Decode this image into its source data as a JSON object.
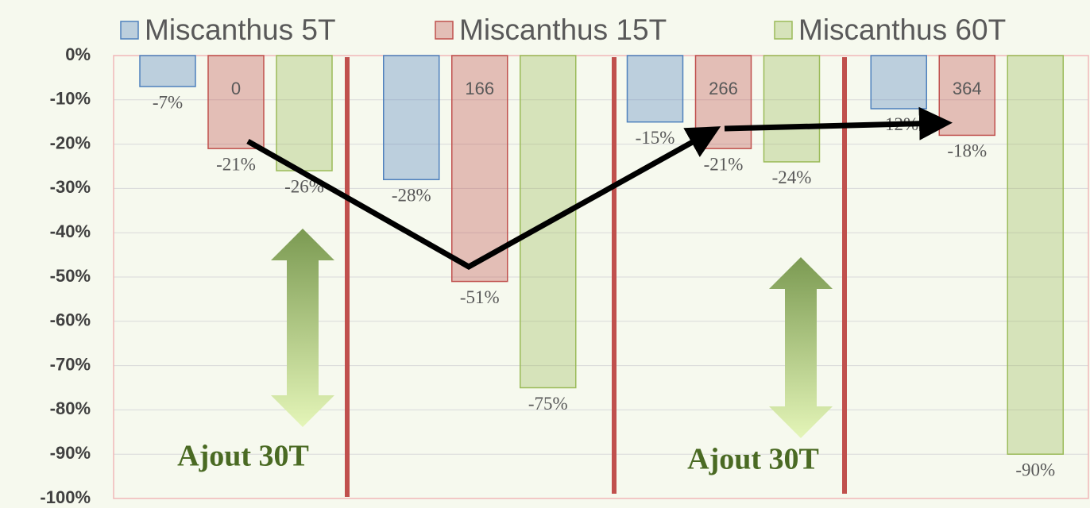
{
  "chart_data": {
    "type": "bar",
    "categories": [
      null,
      null,
      null,
      null
    ],
    "series": [
      {
        "name": "Miscanthus 5T",
        "color": "#4f81bd",
        "values": [
          -7,
          -28,
          -15,
          -12
        ],
        "value_labels": [
          "-7%",
          "-28%",
          "-15%",
          "-12%"
        ]
      },
      {
        "name": "Miscanthus 15T",
        "color": "#c0504d",
        "values": [
          -21,
          -51,
          -21,
          -18
        ],
        "value_labels": [
          "-21%",
          "-51%",
          "-21%",
          "-18%"
        ]
      },
      {
        "name": "Miscanthus 60T",
        "color": "#9bbb59",
        "values": [
          -26,
          -75,
          -24,
          -90
        ],
        "value_labels": [
          "-26%",
          "-75%",
          "-24%",
          "-90%"
        ]
      }
    ],
    "bar_notes": [
      0,
      166,
      266,
      364
    ],
    "annotations": [
      "Ajout 30T",
      "Ajout 30T"
    ],
    "ylim": [
      -100,
      0
    ],
    "yticks": [
      {
        "value": 0,
        "label": "0%"
      },
      {
        "value": -10,
        "label": "-10%"
      },
      {
        "value": -20,
        "label": "-20%"
      },
      {
        "value": -30,
        "label": "-30%"
      },
      {
        "value": -40,
        "label": "-40%"
      },
      {
        "value": -50,
        "label": "-50%"
      },
      {
        "value": -60,
        "label": "-60%"
      },
      {
        "value": -70,
        "label": "-70%"
      },
      {
        "value": -80,
        "label": "-80%"
      },
      {
        "value": -90,
        "label": "-90%"
      },
      {
        "value": -100,
        "label": "-100%"
      }
    ],
    "grid": true
  }
}
